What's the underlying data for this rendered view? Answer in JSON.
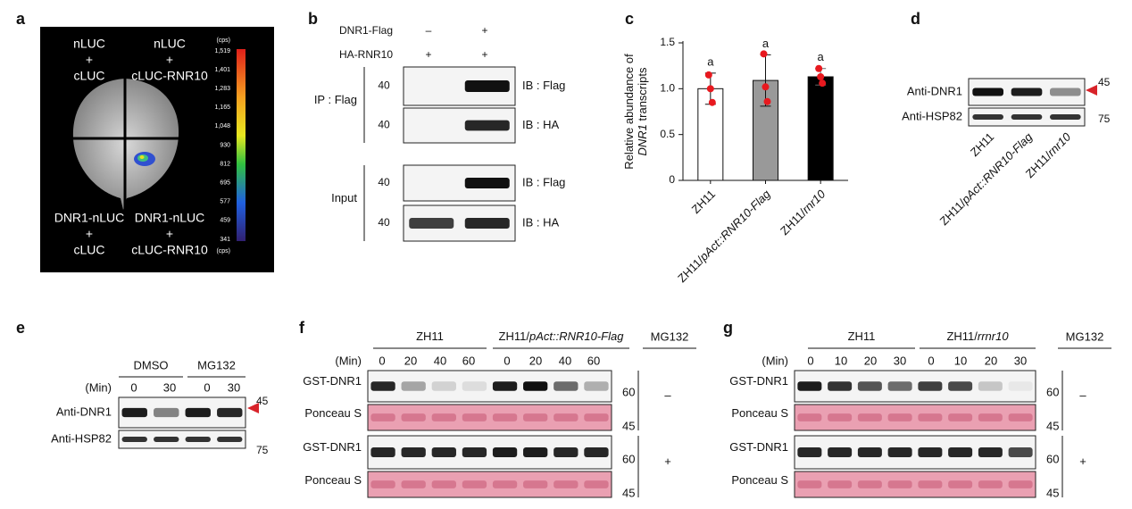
{
  "panel_a": {
    "letter": "a",
    "quadrants": [
      [
        "nLUC",
        "+",
        "cLUC"
      ],
      [
        "nLUC",
        "+",
        "cLUC-RNR10"
      ],
      [
        "DNR1-nLUC",
        "+",
        "cLUC"
      ],
      [
        "DNR1-nLUC",
        "+",
        "cLUC-RNR10"
      ]
    ],
    "colorbar_labels": [
      "(cps)",
      "1,519",
      "1,401",
      "1,283",
      "1,165",
      "1,048",
      "930",
      "812",
      "695",
      "577",
      "459",
      "341",
      "(cps)"
    ]
  },
  "panel_b": {
    "letter": "b",
    "treatments": [
      {
        "name": "DNR1-Flag",
        "marks": [
          "–",
          "+"
        ]
      },
      {
        "name": "HA-RNR10",
        "marks": [
          "+",
          "+"
        ]
      }
    ],
    "groups": [
      {
        "name": "IP : Flag",
        "blots": [
          {
            "mw": "40",
            "label": "IB : Flag"
          },
          {
            "mw": "40",
            "label": "IB : HA"
          }
        ]
      },
      {
        "name": "Input",
        "blots": [
          {
            "mw": "40",
            "label": "IB : Flag"
          },
          {
            "mw": "40",
            "label": "IB : HA"
          }
        ]
      }
    ]
  },
  "chart_data": {
    "type": "bar",
    "letter": "c",
    "y_label": [
      [
        "Relative abundance of"
      ],
      [
        {
          "text": "DNR1",
          "style": "italic"
        },
        " transcripts"
      ]
    ],
    "categories": [
      [
        "ZH11"
      ],
      [
        "ZH11/",
        {
          "text": "pAct::RNR10-Flag",
          "style": "italic"
        }
      ],
      [
        "ZH11/",
        {
          "text": "rnr10",
          "style": "italic"
        }
      ]
    ],
    "values": [
      1.0,
      1.09,
      1.13
    ],
    "errors": [
      0.17,
      0.28,
      0.09
    ],
    "colors": [
      "#ffffff",
      "#999999",
      "#000000"
    ],
    "point_color": "#e8191f",
    "points": [
      [
        1.15,
        1.0,
        0.85
      ],
      [
        1.38,
        1.02,
        0.86
      ],
      [
        1.22,
        1.13,
        1.06
      ]
    ],
    "annotations": [
      "a",
      "a",
      "a"
    ],
    "ylim": [
      0,
      1.5
    ],
    "yticks": [
      0,
      0.5,
      {
        "value": 1,
        "label": "1.0"
      },
      1.5
    ]
  },
  "panel_d": {
    "letter": "d",
    "rows": [
      "Anti-DNR1",
      "Anti-HSP82"
    ],
    "mw": [
      "45",
      "75"
    ],
    "lanes": [
      [
        "ZH11"
      ],
      [
        "ZH11/",
        {
          "text": "pAct::RNR10-Flag",
          "style": "italic"
        }
      ],
      [
        "ZH11/",
        {
          "text": "rnr10",
          "style": "italic"
        }
      ]
    ]
  },
  "panel_e": {
    "letter": "e",
    "groups": [
      "DMSO",
      "MG132"
    ],
    "time_label": "(Min)",
    "times": [
      "0",
      "30",
      "0",
      "30"
    ],
    "rows": [
      "Anti-DNR1",
      "Anti-HSP82"
    ],
    "mw": [
      "45",
      "75"
    ]
  },
  "panel_f": {
    "letter": "f",
    "groups": [
      [
        "ZH11"
      ],
      [
        "ZH11/",
        {
          "text": "pAct::RNR10-Flag",
          "style": "italic"
        }
      ]
    ],
    "treatment": "MG132",
    "time_label": "(Min)",
    "times": [
      "0",
      "20",
      "40",
      "60",
      "0",
      "20",
      "40",
      "60"
    ],
    "blocks": [
      {
        "rows": [
          "GST-DNR1",
          "Ponceau S"
        ],
        "mw": [
          "60",
          "45"
        ],
        "mark": "–"
      },
      {
        "rows": [
          "GST-DNR1",
          "Ponceau S"
        ],
        "mw": [
          "60",
          "45"
        ],
        "mark": "+"
      }
    ]
  },
  "panel_g": {
    "letter": "g",
    "groups": [
      [
        "ZH11"
      ],
      [
        "ZH11/",
        {
          "text": "rrnr10",
          "style": "italic"
        }
      ]
    ],
    "treatment": "MG132",
    "time_label": "(Min)",
    "times": [
      "0",
      "10",
      "20",
      "30",
      "0",
      "10",
      "20",
      "30"
    ],
    "blocks": [
      {
        "rows": [
          "GST-DNR1",
          "Ponceau S"
        ],
        "mw": [
          "60",
          "45"
        ],
        "mark": "–"
      },
      {
        "rows": [
          "GST-DNR1",
          "Ponceau S"
        ],
        "mw": [
          "60",
          "45"
        ],
        "mark": "+"
      }
    ]
  }
}
